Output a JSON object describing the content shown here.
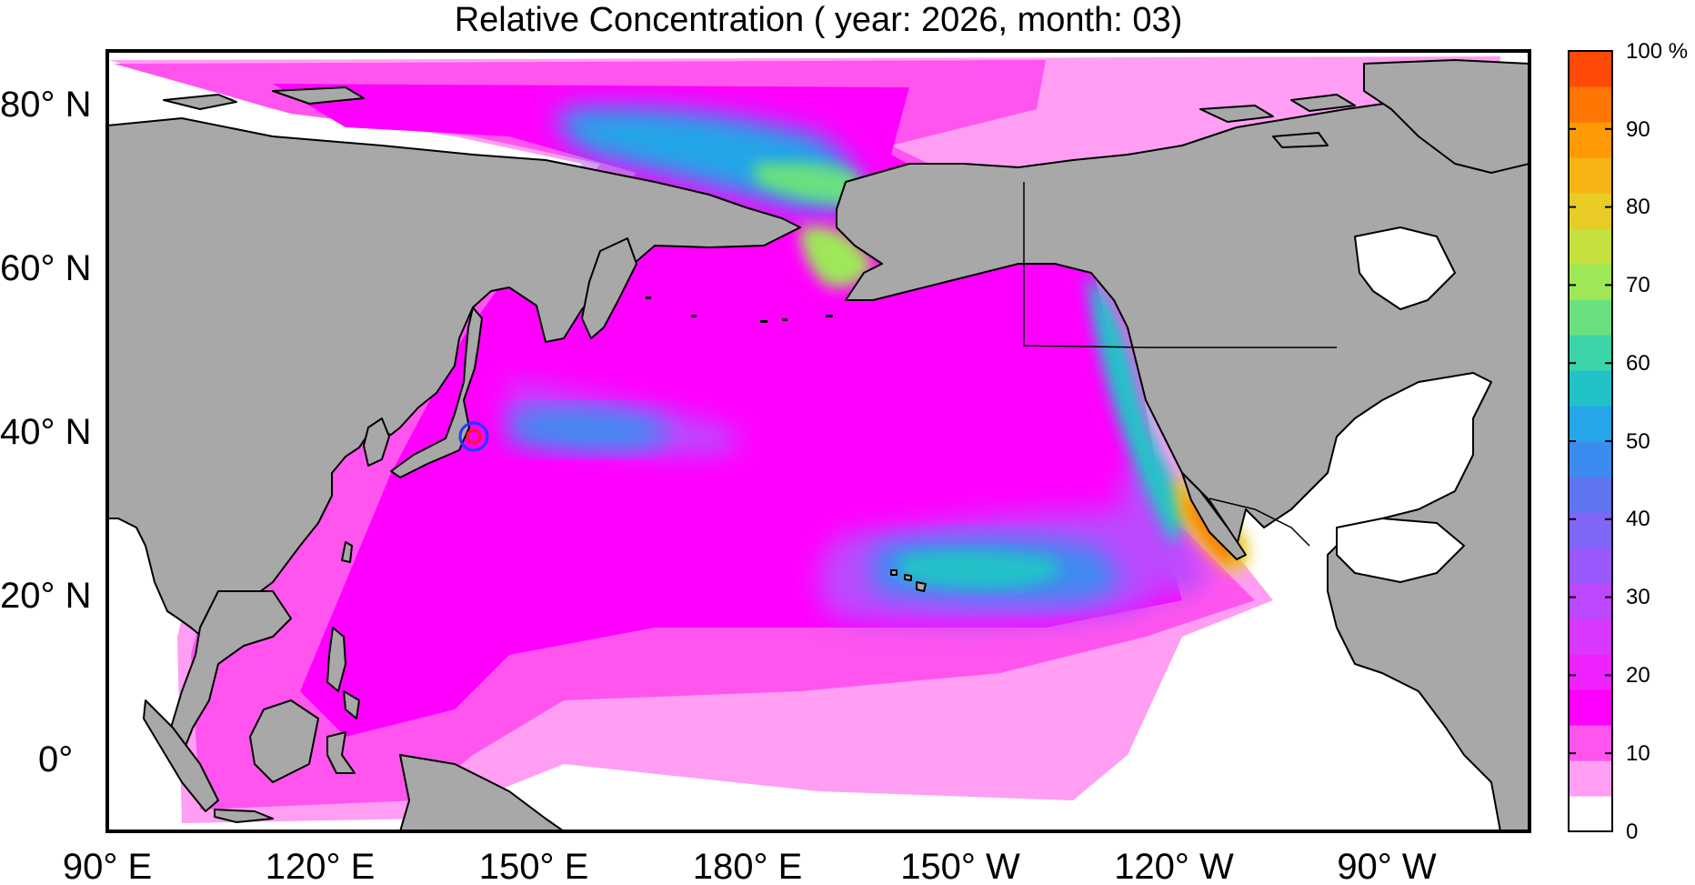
{
  "title": "Relative Concentration ( year: 2026, month: 03)",
  "map": {
    "projection": "equirectangular",
    "lon_range": [
      90,
      290
    ],
    "lat_range": [
      -10,
      87
    ],
    "lat_ticks": [
      "80° N",
      "60° N",
      "40° N",
      "20° N",
      "0°"
    ],
    "lon_ticks": [
      "90° E",
      "120° E",
      "150° E",
      "180° E",
      "150° W",
      "120° W",
      "90° W"
    ],
    "land_color": "#a8a8a8",
    "ocean_color": "#ffffff",
    "source_marker": {
      "lon": 141.0,
      "lat": 37.4
    }
  },
  "colorbar": {
    "ticks": [
      "0",
      "10",
      "20",
      "30",
      "40",
      "50",
      "60",
      "70",
      "80",
      "90",
      "100 %"
    ],
    "colors": [
      "#ffffff",
      "#ff9ef2",
      "#ff55ee",
      "#ff00ff",
      "#ee22ff",
      "#d838ff",
      "#bc48ff",
      "#9b58ff",
      "#7f66f8",
      "#5f74f0",
      "#3c8cf0",
      "#24a6e8",
      "#20c2c8",
      "#3ad4a8",
      "#6ae080",
      "#9ee858",
      "#c6e040",
      "#e6cc24",
      "#f5b414",
      "#ff9a06",
      "#ff7604",
      "#ff4a08"
    ]
  }
}
